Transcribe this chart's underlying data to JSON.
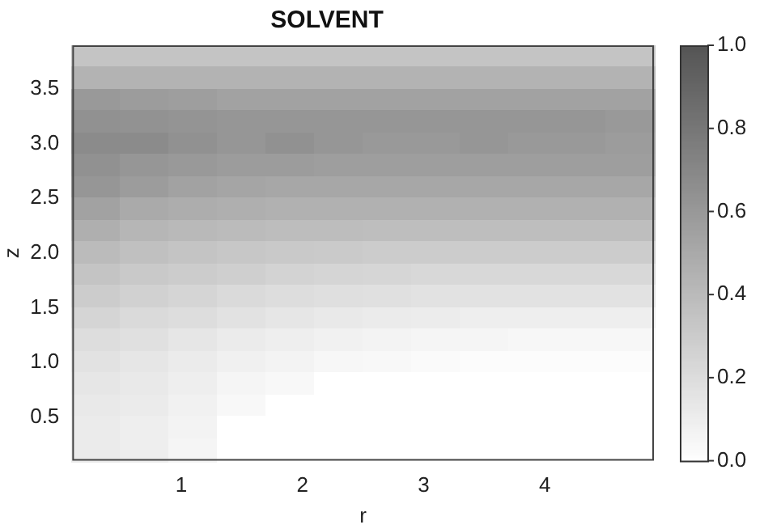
{
  "chart_data": {
    "type": "heatmap",
    "title": "SOLVENT",
    "xlabel": "r",
    "ylabel": "z",
    "x": [
      0.3,
      0.7,
      1.1,
      1.5,
      1.9,
      2.3,
      2.7,
      3.1,
      3.5,
      3.9,
      4.3,
      4.7
    ],
    "y": [
      3.8,
      3.6,
      3.4,
      3.2,
      3.0,
      2.8,
      2.6,
      2.4,
      2.2,
      2.0,
      1.8,
      1.6,
      1.4,
      1.2,
      1.0,
      0.8,
      0.6,
      0.4,
      0.2
    ],
    "xlim": [
      0.1,
      4.9
    ],
    "xticks": [
      1,
      2,
      3,
      4
    ],
    "ylim": [
      0.1,
      3.9
    ],
    "yticks": [
      0.5,
      {
        "value": 1,
        "label": "1.0"
      },
      1.5,
      {
        "value": 2,
        "label": "2.0"
      },
      2.5,
      {
        "value": 3,
        "label": "3.0"
      },
      3.5
    ],
    "clim": [
      0,
      1
    ],
    "cticks": [
      {
        "value": 0,
        "label": "0.0"
      },
      0.2,
      0.4,
      0.6,
      0.8,
      {
        "value": 1,
        "label": "1.0"
      }
    ],
    "grid": false,
    "cells": [
      [
        0.35,
        0.35,
        0.35,
        0.35,
        0.35,
        0.35,
        0.35,
        0.35,
        0.35,
        0.35,
        0.35,
        0.35
      ],
      [
        0.45,
        0.45,
        0.45,
        0.45,
        0.45,
        0.45,
        0.45,
        0.45,
        0.45,
        0.45,
        0.45,
        0.45
      ],
      [
        0.6,
        0.58,
        0.57,
        0.55,
        0.55,
        0.55,
        0.55,
        0.55,
        0.55,
        0.55,
        0.55,
        0.55
      ],
      [
        0.65,
        0.64,
        0.63,
        0.62,
        0.62,
        0.62,
        0.62,
        0.62,
        0.62,
        0.62,
        0.62,
        0.6
      ],
      [
        0.68,
        0.68,
        0.65,
        0.62,
        0.65,
        0.62,
        0.6,
        0.6,
        0.62,
        0.6,
        0.6,
        0.58
      ],
      [
        0.65,
        0.62,
        0.6,
        0.58,
        0.58,
        0.57,
        0.57,
        0.57,
        0.57,
        0.57,
        0.57,
        0.57
      ],
      [
        0.62,
        0.58,
        0.55,
        0.53,
        0.52,
        0.52,
        0.52,
        0.52,
        0.52,
        0.52,
        0.52,
        0.52
      ],
      [
        0.55,
        0.5,
        0.48,
        0.47,
        0.46,
        0.46,
        0.46,
        0.46,
        0.46,
        0.46,
        0.46,
        0.46
      ],
      [
        0.47,
        0.43,
        0.41,
        0.4,
        0.39,
        0.39,
        0.38,
        0.38,
        0.38,
        0.38,
        0.38,
        0.38
      ],
      [
        0.4,
        0.37,
        0.35,
        0.33,
        0.32,
        0.31,
        0.3,
        0.3,
        0.3,
        0.3,
        0.3,
        0.3
      ],
      [
        0.35,
        0.32,
        0.3,
        0.28,
        0.26,
        0.25,
        0.24,
        0.23,
        0.23,
        0.23,
        0.23,
        0.23
      ],
      [
        0.3,
        0.27,
        0.25,
        0.22,
        0.2,
        0.19,
        0.18,
        0.17,
        0.17,
        0.17,
        0.17,
        0.17
      ],
      [
        0.25,
        0.22,
        0.2,
        0.17,
        0.15,
        0.13,
        0.12,
        0.11,
        0.1,
        0.1,
        0.1,
        0.1
      ],
      [
        0.2,
        0.18,
        0.15,
        0.12,
        0.1,
        0.08,
        0.07,
        0.06,
        0.06,
        0.05,
        0.05,
        0.05
      ],
      [
        0.17,
        0.15,
        0.12,
        0.09,
        0.07,
        0.05,
        0.04,
        0.03,
        0.02,
        0.02,
        0.02,
        0.02
      ],
      [
        0.15,
        0.13,
        0.1,
        0.06,
        0.04,
        0,
        0,
        0,
        0,
        0,
        0,
        0
      ],
      [
        0.13,
        0.12,
        0.08,
        0.04,
        0,
        0,
        0,
        0,
        0,
        0,
        0,
        0
      ],
      [
        0.12,
        0.1,
        0.07,
        0,
        0,
        0,
        0,
        0,
        0,
        0,
        0,
        0
      ],
      [
        0.12,
        0.1,
        0.06,
        0,
        0,
        0,
        0,
        0,
        0,
        0,
        0,
        0
      ]
    ]
  }
}
